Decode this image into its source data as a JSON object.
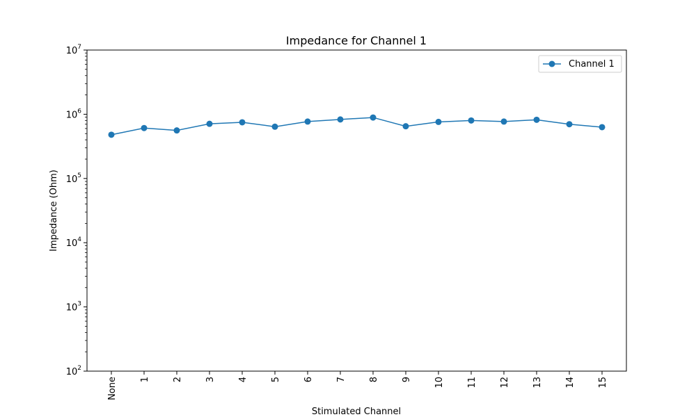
{
  "chart_data": {
    "type": "line",
    "title": "Impedance for Channel 1",
    "xlabel": "Stimulated Channel",
    "ylabel": "Impedance (Ohm)",
    "yscale": "log",
    "ylim": [
      100,
      10000000
    ],
    "categories": [
      "None",
      "1",
      "2",
      "3",
      "4",
      "5",
      "6",
      "7",
      "8",
      "9",
      "10",
      "11",
      "12",
      "13",
      "14",
      "15"
    ],
    "series": [
      {
        "name": "Channel 1",
        "color": "#1f77b4",
        "marker": "circle",
        "values": [
          480000,
          610000,
          560000,
          710000,
          750000,
          640000,
          770000,
          830000,
          890000,
          650000,
          760000,
          800000,
          770000,
          820000,
          700000,
          630000
        ]
      }
    ],
    "yticks": [
      {
        "value": 100,
        "base": "10",
        "exp": "2"
      },
      {
        "value": 1000,
        "base": "10",
        "exp": "3"
      },
      {
        "value": 10000,
        "base": "10",
        "exp": "4"
      },
      {
        "value": 100000,
        "base": "10",
        "exp": "5"
      },
      {
        "value": 1000000,
        "base": "10",
        "exp": "6"
      },
      {
        "value": 10000000,
        "base": "10",
        "exp": "7"
      }
    ],
    "grid": false,
    "legend_position": "top-right"
  }
}
